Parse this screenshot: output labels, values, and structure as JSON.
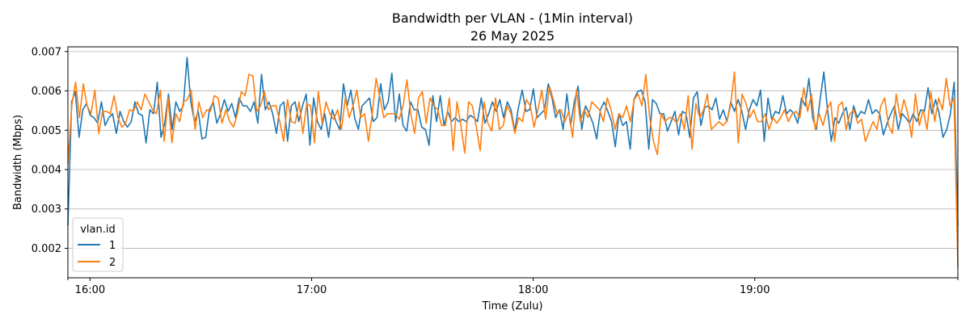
{
  "chart_data": {
    "type": "line",
    "title": "Bandwidth per VLAN - (1Min interval)",
    "subtitle": "26 May 2025",
    "xlabel": "Time (Zulu)",
    "ylabel": "Bandwidth (Mbps)",
    "x_start": "15:54",
    "x_end": "19:55",
    "xlim_minutes": [
      954,
      1195
    ],
    "ylim": [
      0.00125,
      0.00712
    ],
    "x_ticks": [
      {
        "label": "16:00",
        "minute": 960
      },
      {
        "label": "17:00",
        "minute": 1020
      },
      {
        "label": "18:00",
        "minute": 1080
      },
      {
        "label": "19:00",
        "minute": 1140
      }
    ],
    "y_ticks": [
      0.002,
      0.003,
      0.004,
      0.005,
      0.006,
      0.007
    ],
    "y_tick_labels": [
      "0.002",
      "0.003",
      "0.004",
      "0.005",
      "0.006",
      "0.007"
    ],
    "grid": "horizontal",
    "legend": {
      "title": "vlan.id",
      "position": "bottom-left"
    },
    "series": [
      {
        "name": "1",
        "color": "#1f77b4",
        "values": [
          0.00258,
          0.00572,
          0.00598,
          0.00482,
          0.00552,
          0.00568,
          0.00538,
          0.00532,
          0.00518,
          0.00572,
          0.00512,
          0.00532,
          0.00542,
          0.00492,
          0.00548,
          0.00522,
          0.00508,
          0.00522,
          0.00572,
          0.00542,
          0.00538,
          0.00468,
          0.00552,
          0.00542,
          0.00622,
          0.00482,
          0.00518,
          0.00592,
          0.00502,
          0.00572,
          0.00548,
          0.00562,
          0.00685,
          0.00572,
          0.00522,
          0.00548,
          0.00478,
          0.00482,
          0.00552,
          0.00572,
          0.00518,
          0.00542,
          0.00578,
          0.00548,
          0.00568,
          0.00532,
          0.00582,
          0.00562,
          0.00562,
          0.00548,
          0.00572,
          0.00518,
          0.00642,
          0.00552,
          0.00572,
          0.00542,
          0.00492,
          0.00562,
          0.00572,
          0.00472,
          0.00562,
          0.00572,
          0.00522,
          0.00562,
          0.00592,
          0.00462,
          0.00582,
          0.00522,
          0.00502,
          0.00542,
          0.00482,
          0.00552,
          0.00522,
          0.00502,
          0.00618,
          0.00562,
          0.00602,
          0.00532,
          0.00502,
          0.00562,
          0.00572,
          0.00582,
          0.00522,
          0.00532,
          0.00618,
          0.00552,
          0.00572,
          0.00645,
          0.00522,
          0.00592,
          0.00512,
          0.00498,
          0.00572,
          0.00552,
          0.00552,
          0.00508,
          0.00502,
          0.00462,
          0.00588,
          0.00522,
          0.00588,
          0.00512,
          0.00548,
          0.00522,
          0.00532,
          0.00522,
          0.00528,
          0.00522,
          0.00538,
          0.00532,
          0.00522,
          0.00582,
          0.00518,
          0.00542,
          0.00572,
          0.00548,
          0.00578,
          0.00532,
          0.00572,
          0.00552,
          0.00498,
          0.00558,
          0.00602,
          0.00548,
          0.00552,
          0.00605,
          0.00532,
          0.00542,
          0.00552,
          0.00618,
          0.00582,
          0.00532,
          0.00552,
          0.00502,
          0.00592,
          0.00512,
          0.00572,
          0.00612,
          0.00502,
          0.00562,
          0.00542,
          0.00518,
          0.00478,
          0.00552,
          0.00572,
          0.00548,
          0.00522,
          0.00458,
          0.00542,
          0.00512,
          0.00522,
          0.00452,
          0.00578,
          0.00598,
          0.00602,
          0.00572,
          0.00452,
          0.00578,
          0.00568,
          0.00542,
          0.00542,
          0.00498,
          0.00522,
          0.00548,
          0.00488,
          0.00548,
          0.00542,
          0.00482,
          0.00582,
          0.00598,
          0.00512,
          0.00558,
          0.00562,
          0.00552,
          0.00582,
          0.00528,
          0.00552,
          0.00522,
          0.00572,
          0.00548,
          0.00578,
          0.00548,
          0.00502,
          0.00552,
          0.00578,
          0.00562,
          0.00602,
          0.00472,
          0.00582,
          0.00528,
          0.00548,
          0.00542,
          0.00588,
          0.00542,
          0.00552,
          0.00542,
          0.00518,
          0.00582,
          0.00562,
          0.00632,
          0.00532,
          0.00502,
          0.00578,
          0.00648,
          0.00552,
          0.00472,
          0.00532,
          0.00518,
          0.00542,
          0.00558,
          0.00502,
          0.00562,
          0.00532,
          0.00548,
          0.00542,
          0.00578,
          0.00542,
          0.00552,
          0.00542,
          0.00488,
          0.00518,
          0.00542,
          0.00562,
          0.00502,
          0.00542,
          0.00532,
          0.00518,
          0.00542,
          0.00522,
          0.00552,
          0.00548,
          0.00608,
          0.00542,
          0.00578,
          0.00542,
          0.00482,
          0.00502,
          0.00542,
          0.00622,
          0.00258
        ]
      },
      {
        "name": "2",
        "color": "#ff7f0e",
        "values": [
          0.00415,
          0.00562,
          0.00622,
          0.00532,
          0.00618,
          0.00562,
          0.00542,
          0.00602,
          0.00492,
          0.00548,
          0.00548,
          0.00542,
          0.00588,
          0.00532,
          0.00508,
          0.00518,
          0.00552,
          0.00548,
          0.00572,
          0.00552,
          0.00592,
          0.00572,
          0.00552,
          0.00542,
          0.00602,
          0.00472,
          0.00582,
          0.00468,
          0.00542,
          0.00522,
          0.00572,
          0.00578,
          0.00602,
          0.00502,
          0.00572,
          0.00532,
          0.00552,
          0.00548,
          0.00588,
          0.00582,
          0.00518,
          0.00552,
          0.00522,
          0.00508,
          0.00542,
          0.00598,
          0.00588,
          0.00642,
          0.00638,
          0.00548,
          0.00562,
          0.00598,
          0.00552,
          0.00562,
          0.00562,
          0.00522,
          0.00472,
          0.00578,
          0.00522,
          0.00518,
          0.00572,
          0.00492,
          0.00568,
          0.00562,
          0.00468,
          0.00598,
          0.00518,
          0.00572,
          0.00542,
          0.00528,
          0.00552,
          0.00502,
          0.00582,
          0.00532,
          0.00562,
          0.00602,
          0.00532,
          0.00542,
          0.00472,
          0.00542,
          0.00632,
          0.00582,
          0.00532,
          0.00542,
          0.00542,
          0.00542,
          0.00528,
          0.00562,
          0.00628,
          0.00542,
          0.00492,
          0.00582,
          0.00598,
          0.00518,
          0.00582,
          0.00562,
          0.00552,
          0.00512,
          0.00512,
          0.00582,
          0.00448,
          0.00572,
          0.00512,
          0.00442,
          0.00572,
          0.00562,
          0.00508,
          0.00448,
          0.00572,
          0.00518,
          0.00498,
          0.00582,
          0.00502,
          0.00512,
          0.00562,
          0.00542,
          0.00492,
          0.00532,
          0.00522,
          0.00578,
          0.00562,
          0.00508,
          0.00552,
          0.00602,
          0.00528,
          0.00612,
          0.00578,
          0.00542,
          0.00552,
          0.00522,
          0.00548,
          0.00482,
          0.00602,
          0.00522,
          0.00552,
          0.00532,
          0.00572,
          0.00562,
          0.00552,
          0.00522,
          0.00582,
          0.00552,
          0.00502,
          0.00542,
          0.00532,
          0.00562,
          0.00522,
          0.00578,
          0.00592,
          0.00562,
          0.00642,
          0.00532,
          0.00472,
          0.00438,
          0.00542,
          0.00522,
          0.00532,
          0.00532,
          0.00518,
          0.00542,
          0.00502,
          0.00588,
          0.00452,
          0.00568,
          0.00532,
          0.00552,
          0.00592,
          0.00502,
          0.00512,
          0.00522,
          0.00512,
          0.00522,
          0.00562,
          0.00648,
          0.00468,
          0.00592,
          0.00568,
          0.00532,
          0.00552,
          0.00522,
          0.00522,
          0.00542,
          0.00502,
          0.00532,
          0.00518,
          0.00532,
          0.00552,
          0.00522,
          0.00542,
          0.00548,
          0.00532,
          0.00608,
          0.00548,
          0.00592,
          0.00502,
          0.00542,
          0.00512,
          0.00552,
          0.00572,
          0.00472,
          0.00562,
          0.00572,
          0.00502,
          0.00542,
          0.00552,
          0.00518,
          0.00528,
          0.00472,
          0.00498,
          0.00522,
          0.00502,
          0.00562,
          0.00582,
          0.00512,
          0.00492,
          0.00592,
          0.00532,
          0.00578,
          0.00542,
          0.00482,
          0.00592,
          0.00512,
          0.00552,
          0.00502,
          0.00598,
          0.00522,
          0.00582,
          0.00552,
          0.00632,
          0.00562,
          0.00582,
          0.00152
        ]
      }
    ]
  }
}
